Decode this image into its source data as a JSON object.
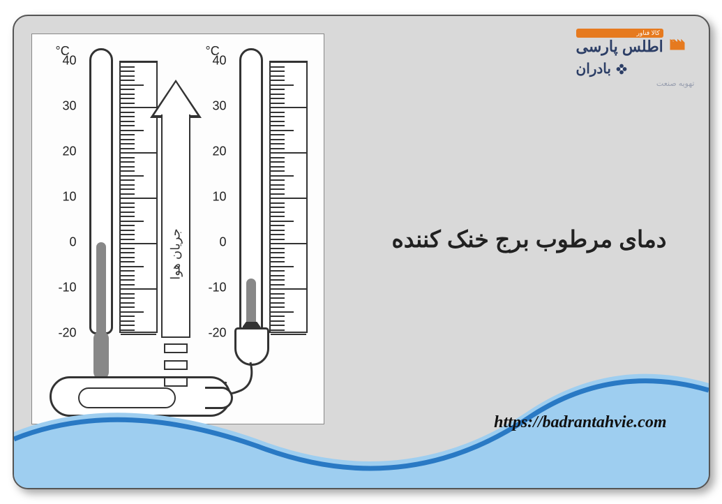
{
  "colors": {
    "card_bg": "#d9d9d9",
    "diagram_bg": "#fdfdfd",
    "stroke": "#333333",
    "mercury": "#888888",
    "wave_dark": "#2979c4",
    "wave_light": "#9ecef0",
    "logo_primary": "#2c3e66",
    "logo_accent": "#e67a1f",
    "logo_tag": "#9aa0b0"
  },
  "logo": {
    "badge": "کالا فناور",
    "main": "اطلس پارسی",
    "sub": "بادران",
    "tag": "تهویه صنعت"
  },
  "title": "دمای مرطوب برج خنک کننده",
  "url": "https://badrantahvie.com",
  "diagram": {
    "unit": "°C",
    "scale": {
      "min": -20,
      "max": 40,
      "step": 10,
      "labels": [
        "40",
        "30",
        "20",
        "10",
        "0",
        "-10",
        "-20"
      ]
    },
    "arrow_label": "جریان هوا",
    "dry_bulb_reading": 0,
    "wet_bulb_reading": -8
  }
}
